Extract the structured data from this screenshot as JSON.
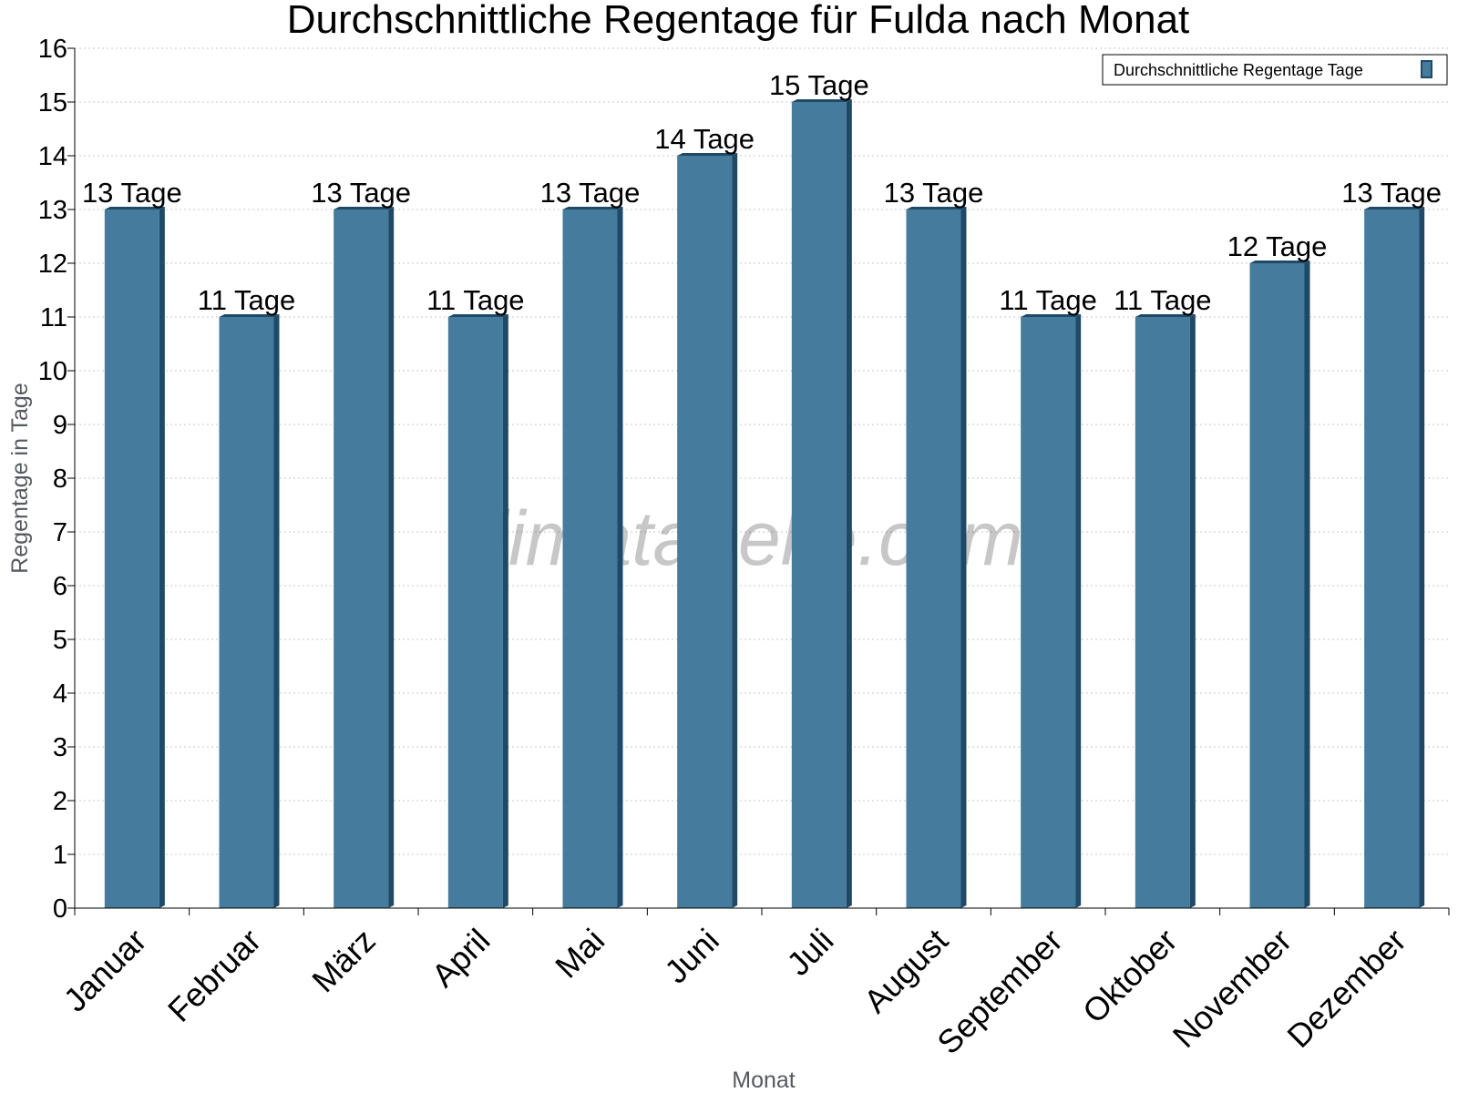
{
  "chart_data": {
    "type": "bar",
    "title": "Durchschnittliche Regentage für Fulda nach Monat",
    "xlabel": "Monat",
    "ylabel": "Regentage in Tage",
    "ylim": [
      0,
      16
    ],
    "yticks": [
      0,
      1,
      2,
      3,
      4,
      5,
      6,
      7,
      8,
      9,
      10,
      11,
      12,
      13,
      14,
      15,
      16
    ],
    "grid": true,
    "legend_position": "top-right",
    "categories": [
      "Januar",
      "Februar",
      "März",
      "April",
      "Mai",
      "Juni",
      "Juli",
      "August",
      "September",
      "Oktober",
      "November",
      "Dezember"
    ],
    "series": [
      {
        "name": "Durchschnittliche Regentage Tage",
        "color": "#457b9d",
        "values": [
          13,
          11,
          13,
          11,
          13,
          14,
          15,
          13,
          11,
          11,
          12,
          13
        ],
        "labels": [
          "13 Tage",
          "11 Tage",
          "13 Tage",
          "11 Tage",
          "13 Tage",
          "14 Tage",
          "15 Tage",
          "13 Tage",
          "11 Tage",
          "11 Tage",
          "12 Tage",
          "13 Tage"
        ]
      }
    ],
    "watermark": "klimatabelle.com"
  }
}
